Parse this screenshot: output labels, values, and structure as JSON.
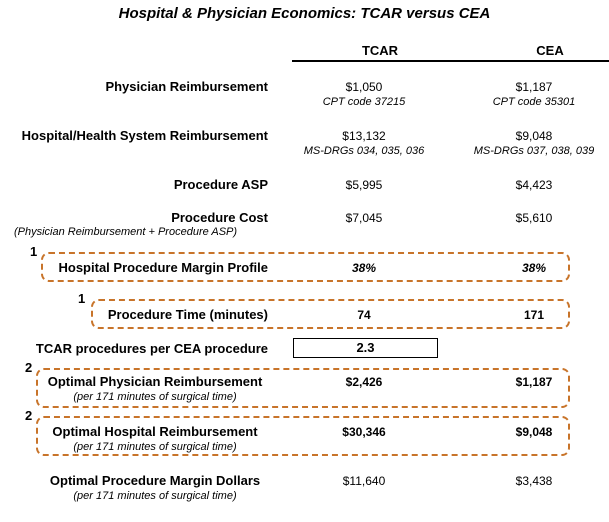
{
  "title": "Hospital & Physician Economics: TCAR versus CEA",
  "columns": [
    "TCAR",
    "CEA"
  ],
  "rows": {
    "physician_reimbursement": {
      "label": "Physician Reimbursement",
      "tcar": "$1,050",
      "tcar_note": "CPT code 37215",
      "cea": "$1,187",
      "cea_note": "CPT code 35301"
    },
    "hospital_reimbursement": {
      "label": "Hospital/Health System Reimbursement",
      "tcar": "$13,132",
      "tcar_note": "MS-DRGs 034, 035, 036",
      "cea": "$9,048",
      "cea_note": "MS-DRGs 037, 038, 039"
    },
    "procedure_asp": {
      "label": "Procedure ASP",
      "tcar": "$5,995",
      "cea": "$4,423"
    },
    "procedure_cost": {
      "label": "Procedure Cost",
      "sublabel": "(Physician Reimbursement + Procedure ASP)",
      "tcar": "$7,045",
      "cea": "$5,610"
    },
    "margin_profile": {
      "marker": "1",
      "label": "Hospital Procedure Margin Profile",
      "tcar": "38%",
      "cea": "38%"
    },
    "procedure_time": {
      "marker": "1",
      "label": "Procedure Time (minutes)",
      "tcar": "74",
      "cea": "171"
    },
    "tcar_per_cea": {
      "label": "TCAR procedures per CEA procedure",
      "value": "2.3"
    },
    "optimal_physician": {
      "marker": "2",
      "label": "Optimal Physician Reimbursement",
      "sublabel": "(per 171 minutes of surgical time)",
      "tcar": "$2,426",
      "cea": "$1,187"
    },
    "optimal_hospital": {
      "marker": "2",
      "label": "Optimal Hospital Reimbursement",
      "sublabel": "(per 171 minutes of surgical time)",
      "tcar": "$30,346",
      "cea": "$9,048"
    },
    "optimal_margin": {
      "label": "Optimal Procedure Margin Dollars",
      "sublabel": "(per 171 minutes of surgical time)",
      "tcar": "$11,640",
      "cea": "$3,438"
    }
  },
  "colors": {
    "dashed_border": "#c8742a",
    "text": "#000000",
    "background": "#ffffff"
  }
}
